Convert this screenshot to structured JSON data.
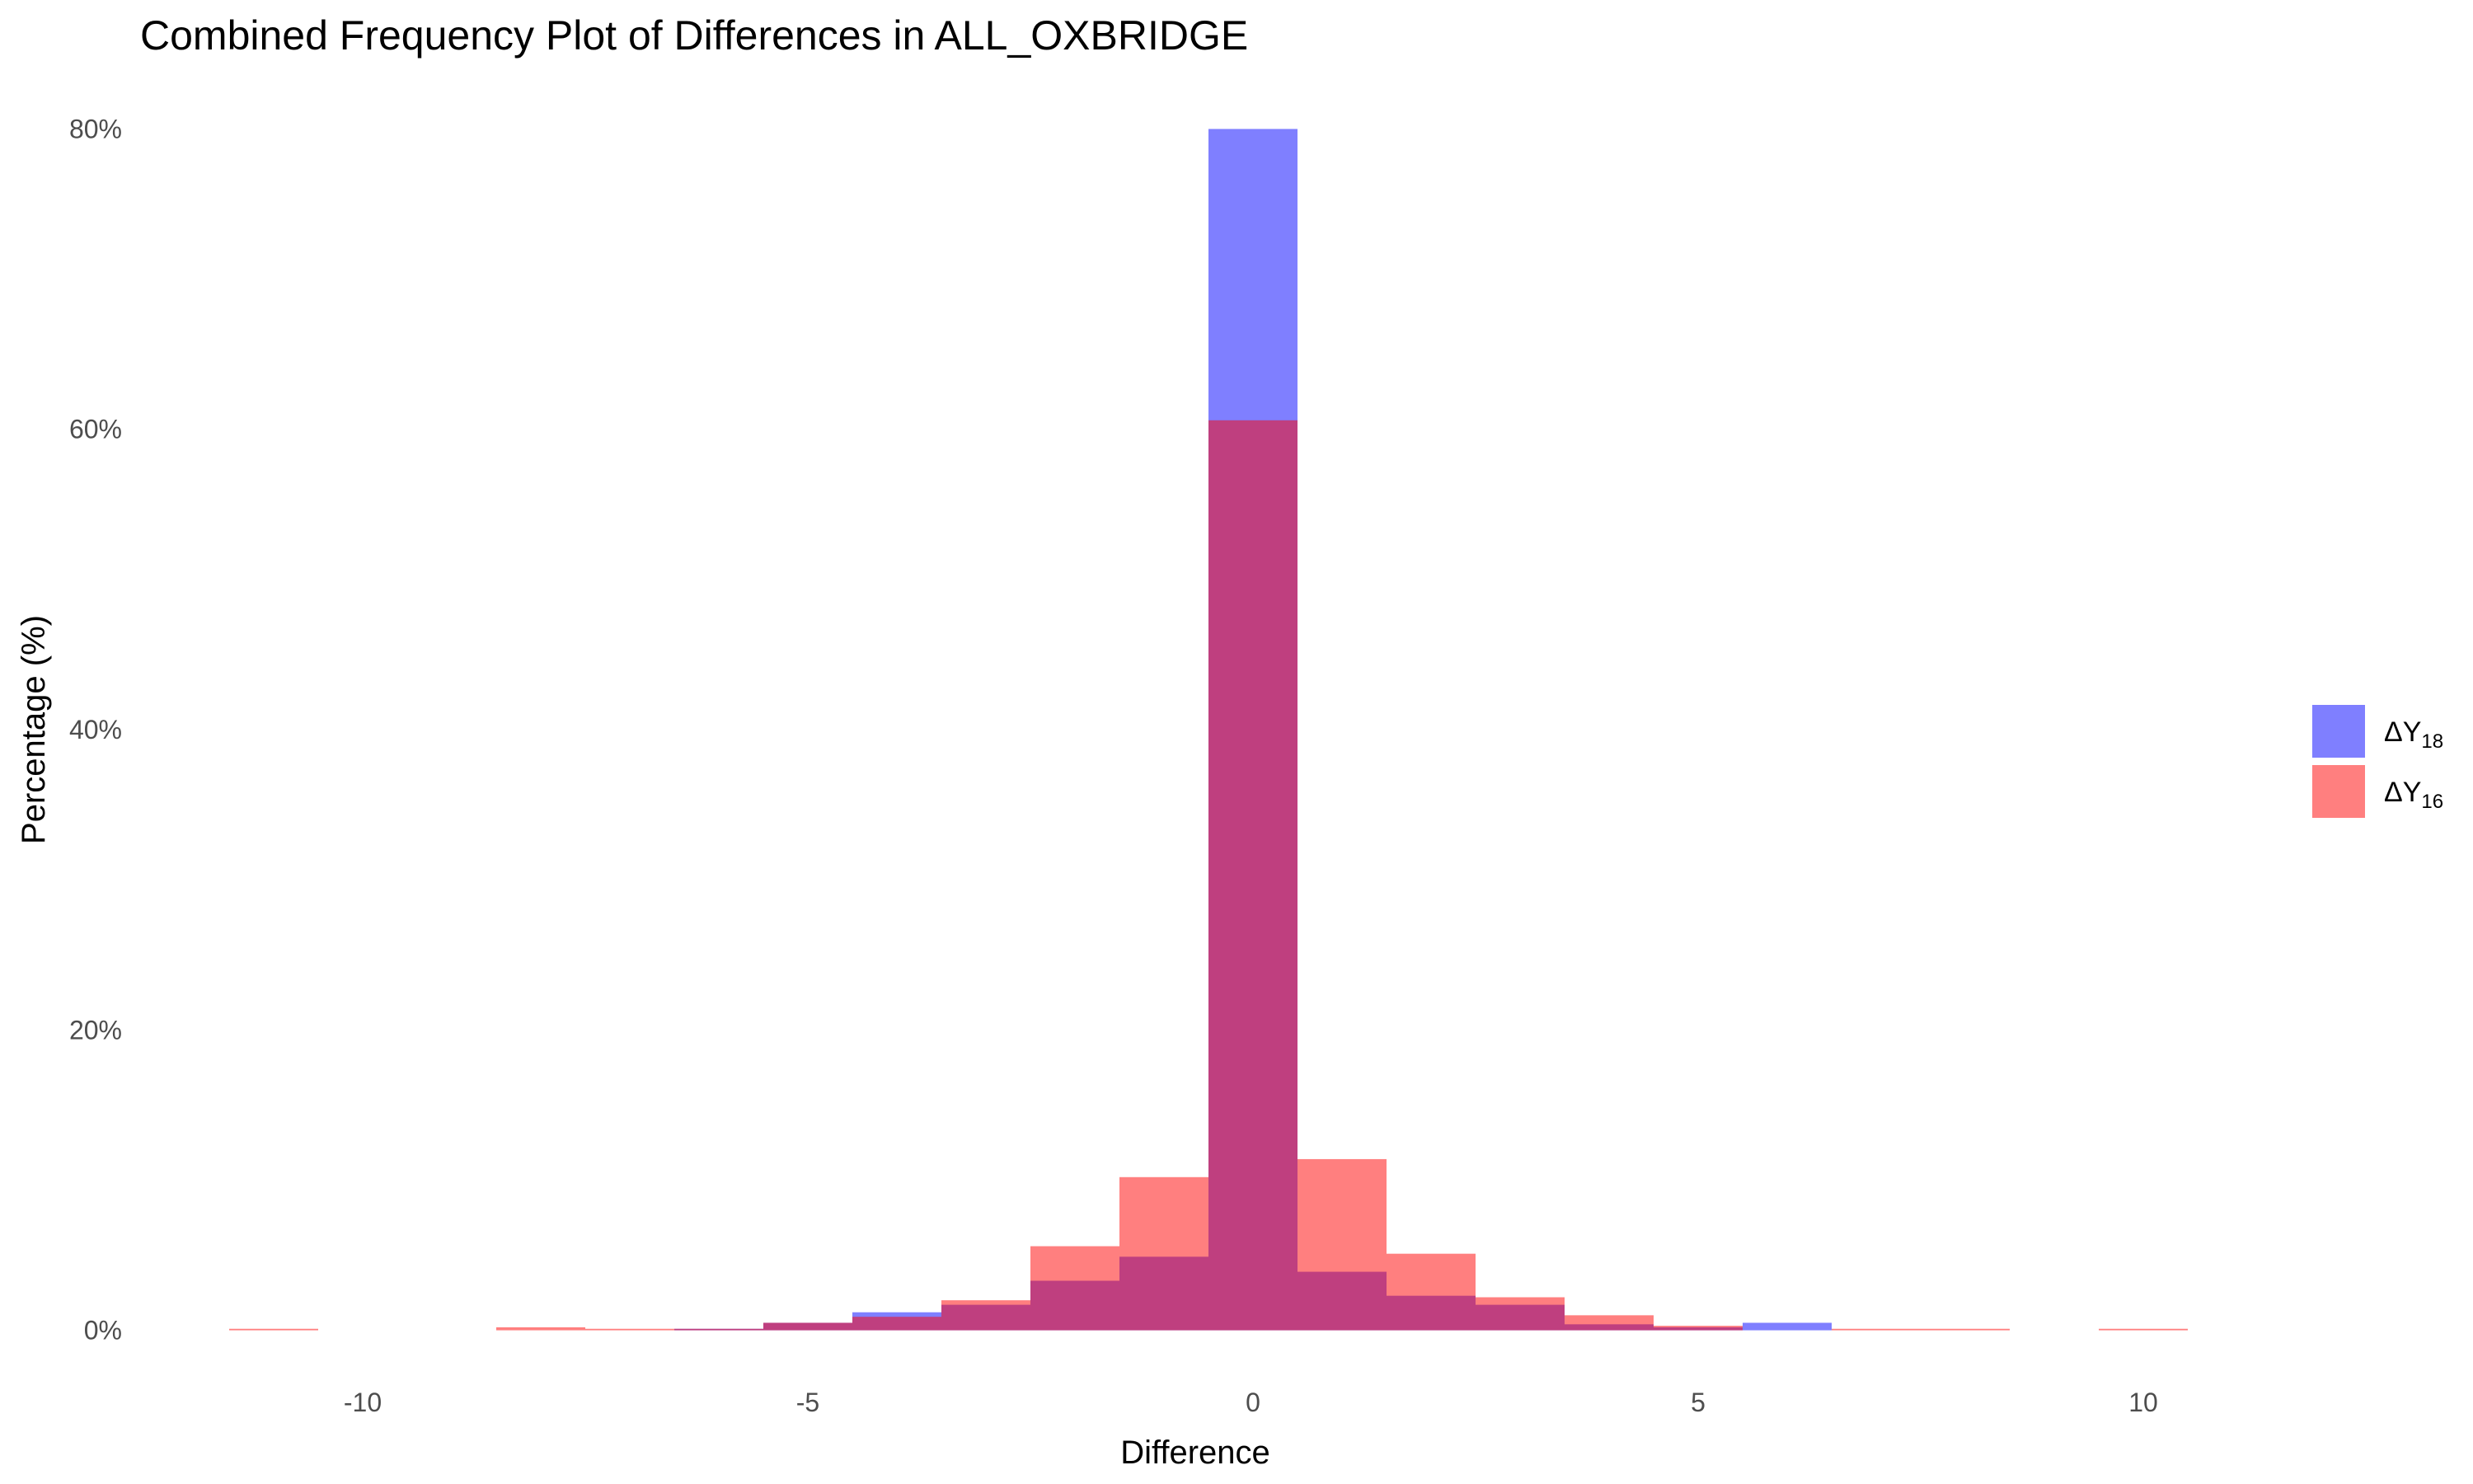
{
  "chart_data": {
    "type": "bar",
    "title": "Combined Frequency Plot of Differences in ALL_OXBRIDGE",
    "xlabel": "Difference",
    "ylabel": "Percentage (%)",
    "x_ticks": [
      "-10",
      "-5",
      "0",
      "5",
      "10"
    ],
    "x_tick_values": [
      -10,
      -5,
      0,
      5,
      10
    ],
    "y_ticks": [
      "0%",
      "20%",
      "40%",
      "60%",
      "80%"
    ],
    "y_tick_values": [
      0,
      20,
      40,
      60,
      80
    ],
    "xlim": [
      -12.5,
      12.5
    ],
    "ylim": [
      -2,
      82
    ],
    "bin_width": 1,
    "grid": false,
    "legend_position": "right",
    "series": [
      {
        "name": "ΔY",
        "subscript": "18",
        "color": "#0000ff",
        "opacity": 0.5,
        "bins": [
          {
            "x": -6,
            "value": 0.1
          },
          {
            "x": -5,
            "value": 0.5
          },
          {
            "x": -4,
            "value": 1.2
          },
          {
            "x": -3,
            "value": 1.7
          },
          {
            "x": -2,
            "value": 3.3
          },
          {
            "x": -1,
            "value": 4.9
          },
          {
            "x": 0,
            "value": 80.0
          },
          {
            "x": 1,
            "value": 3.9
          },
          {
            "x": 2,
            "value": 2.3
          },
          {
            "x": 3,
            "value": 1.7
          },
          {
            "x": 4,
            "value": 0.4
          },
          {
            "x": 5,
            "value": 0.2
          },
          {
            "x": 6,
            "value": 0.5
          }
        ]
      },
      {
        "name": "ΔY",
        "subscript": "16",
        "color": "#ff0000",
        "opacity": 0.5,
        "bins": [
          {
            "x": -11,
            "value": 0.1
          },
          {
            "x": -8,
            "value": 0.2
          },
          {
            "x": -7,
            "value": 0.1
          },
          {
            "x": -6,
            "value": 0.1
          },
          {
            "x": -5,
            "value": 0.5
          },
          {
            "x": -4,
            "value": 0.9
          },
          {
            "x": -3,
            "value": 2.0
          },
          {
            "x": -2,
            "value": 5.6
          },
          {
            "x": -1,
            "value": 10.2
          },
          {
            "x": 0,
            "value": 60.6
          },
          {
            "x": 1,
            "value": 11.4
          },
          {
            "x": 2,
            "value": 5.1
          },
          {
            "x": 3,
            "value": 2.2
          },
          {
            "x": 4,
            "value": 1.0
          },
          {
            "x": 5,
            "value": 0.3
          },
          {
            "x": 7,
            "value": 0.1
          },
          {
            "x": 8,
            "value": 0.1
          },
          {
            "x": 10,
            "value": 0.1
          }
        ]
      }
    ]
  }
}
